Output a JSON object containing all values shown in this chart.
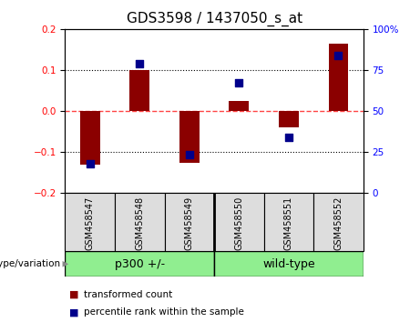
{
  "title": "GDS3598 / 1437050_s_at",
  "samples": [
    "GSM458547",
    "GSM458548",
    "GSM458549",
    "GSM458550",
    "GSM458551",
    "GSM458552"
  ],
  "red_bars": [
    -0.13,
    0.1,
    -0.125,
    0.025,
    -0.04,
    0.165
  ],
  "blue_dots": [
    -0.128,
    0.115,
    -0.105,
    0.07,
    -0.065,
    0.135
  ],
  "blue_dots_pct": [
    17,
    83,
    18,
    68,
    36,
    87
  ],
  "groups": [
    {
      "label": "p300 +/-",
      "indices": [
        0,
        1,
        2
      ],
      "color": "#90EE90"
    },
    {
      "label": "wild-type",
      "indices": [
        3,
        4,
        5
      ],
      "color": "#90EE90"
    }
  ],
  "group_label": "genotype/variation",
  "ylim": [
    -0.2,
    0.2
  ],
  "y2lim": [
    0,
    100
  ],
  "yticks": [
    -0.2,
    -0.1,
    0.0,
    0.1,
    0.2
  ],
  "y2ticks": [
    0,
    25,
    50,
    75,
    100
  ],
  "bar_color": "#8B0000",
  "dot_color": "#00008B",
  "bar_width": 0.4,
  "dot_size": 40,
  "grid_color": "#000000",
  "zero_line_color": "#FF4444",
  "bg_color": "#FFFFFF",
  "plot_bg_color": "#FFFFFF",
  "title_fontsize": 11,
  "tick_fontsize": 7.5,
  "sample_fontsize": 7,
  "legend_fontsize": 7.5,
  "group_box_color": "#C0C0C0",
  "label_box_color": "#DDDDDD"
}
